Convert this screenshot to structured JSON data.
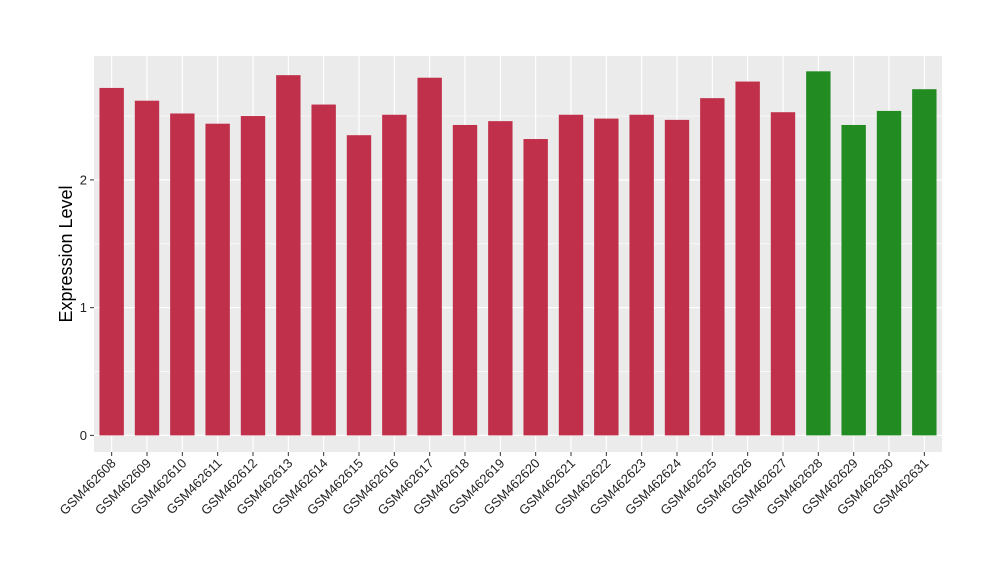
{
  "chart_data": {
    "type": "bar",
    "title": "",
    "xlabel": "",
    "ylabel": "Expression Level",
    "ylim": [
      -0.13,
      2.97
    ],
    "y_ticks": [
      0,
      1,
      2
    ],
    "grid": true,
    "legend": "none",
    "colors": {
      "red": "#c0304a",
      "green": "#228b22",
      "panel": "#ebebeb",
      "grid": "#ffffff"
    },
    "categories": [
      "GSM462608",
      "GSM462609",
      "GSM462610",
      "GSM462611",
      "GSM462612",
      "GSM462613",
      "GSM462614",
      "GSM462615",
      "GSM462616",
      "GSM462617",
      "GSM462618",
      "GSM462619",
      "GSM462620",
      "GSM462621",
      "GSM462622",
      "GSM462623",
      "GSM462624",
      "GSM462625",
      "GSM462626",
      "GSM462627",
      "GSM462628",
      "GSM462629",
      "GSM462630",
      "GSM462631"
    ],
    "values": [
      2.72,
      2.62,
      2.52,
      2.44,
      2.5,
      2.82,
      2.59,
      2.35,
      2.51,
      2.8,
      2.43,
      2.46,
      2.32,
      2.51,
      2.48,
      2.51,
      2.47,
      2.64,
      2.77,
      2.53,
      2.85,
      2.43,
      2.54,
      2.71
    ],
    "bar_colors": [
      "red",
      "red",
      "red",
      "red",
      "red",
      "red",
      "red",
      "red",
      "red",
      "red",
      "red",
      "red",
      "red",
      "red",
      "red",
      "red",
      "red",
      "red",
      "red",
      "red",
      "green",
      "green",
      "green",
      "green"
    ]
  }
}
